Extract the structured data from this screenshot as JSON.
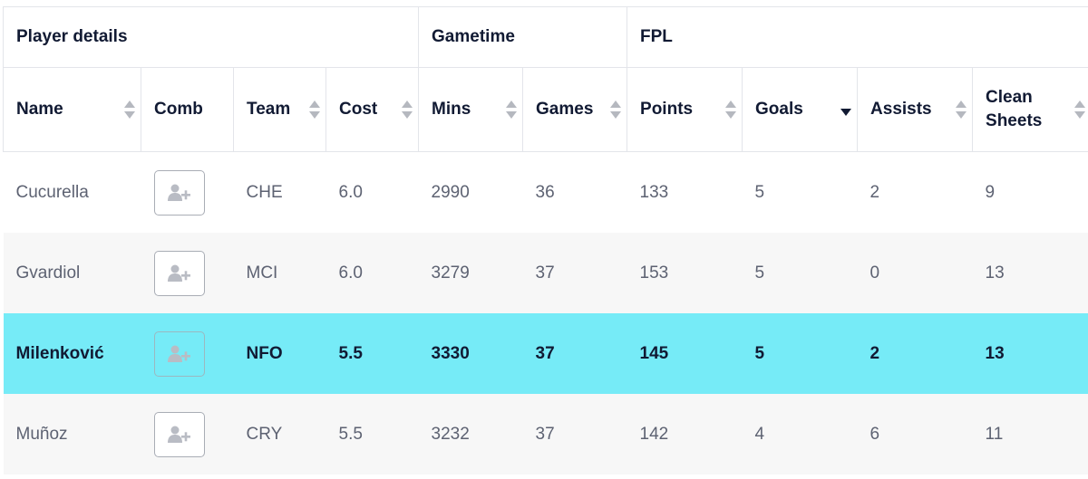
{
  "groups": [
    {
      "label": "Player details",
      "span": 4
    },
    {
      "label": "Gametime",
      "span": 2
    },
    {
      "label": "FPL",
      "span": 4
    }
  ],
  "columns": [
    {
      "label": "Name",
      "sortable": true
    },
    {
      "label": "Comb",
      "sortable": false
    },
    {
      "label": "Team",
      "sortable": true
    },
    {
      "label": "Cost",
      "sortable": true
    },
    {
      "label": "Mins",
      "sortable": true
    },
    {
      "label": "Games",
      "sortable": true
    },
    {
      "label": "Points",
      "sortable": true
    },
    {
      "label": "Goals",
      "sortable": true,
      "sorted": "descending"
    },
    {
      "label": "Assists",
      "sortable": true
    },
    {
      "label": "Clean Sheets",
      "sortable": true
    }
  ],
  "rows": [
    {
      "name": "Cucurella",
      "team": "CHE",
      "cost": "6.0",
      "mins": "2990",
      "games": "36",
      "points": "133",
      "goals": "5",
      "assists": "2",
      "clean_sheets": "9",
      "highlighted": false
    },
    {
      "name": "Gvardiol",
      "team": "MCI",
      "cost": "6.0",
      "mins": "3279",
      "games": "37",
      "points": "153",
      "goals": "5",
      "assists": "0",
      "clean_sheets": "13",
      "highlighted": false
    },
    {
      "name": "Milenković",
      "team": "NFO",
      "cost": "5.5",
      "mins": "3330",
      "games": "37",
      "points": "145",
      "goals": "5",
      "assists": "2",
      "clean_sheets": "13",
      "highlighted": true
    },
    {
      "name": "Muñoz",
      "team": "CRY",
      "cost": "5.5",
      "mins": "3232",
      "games": "37",
      "points": "142",
      "goals": "4",
      "assists": "6",
      "clean_sheets": "11",
      "highlighted": false
    }
  ],
  "comb_icon": "add-user-icon",
  "colors": {
    "highlight": "#76ebf7",
    "text": "#111a33",
    "muted": "#5d6272",
    "alt_row": "#f7f7f7"
  }
}
